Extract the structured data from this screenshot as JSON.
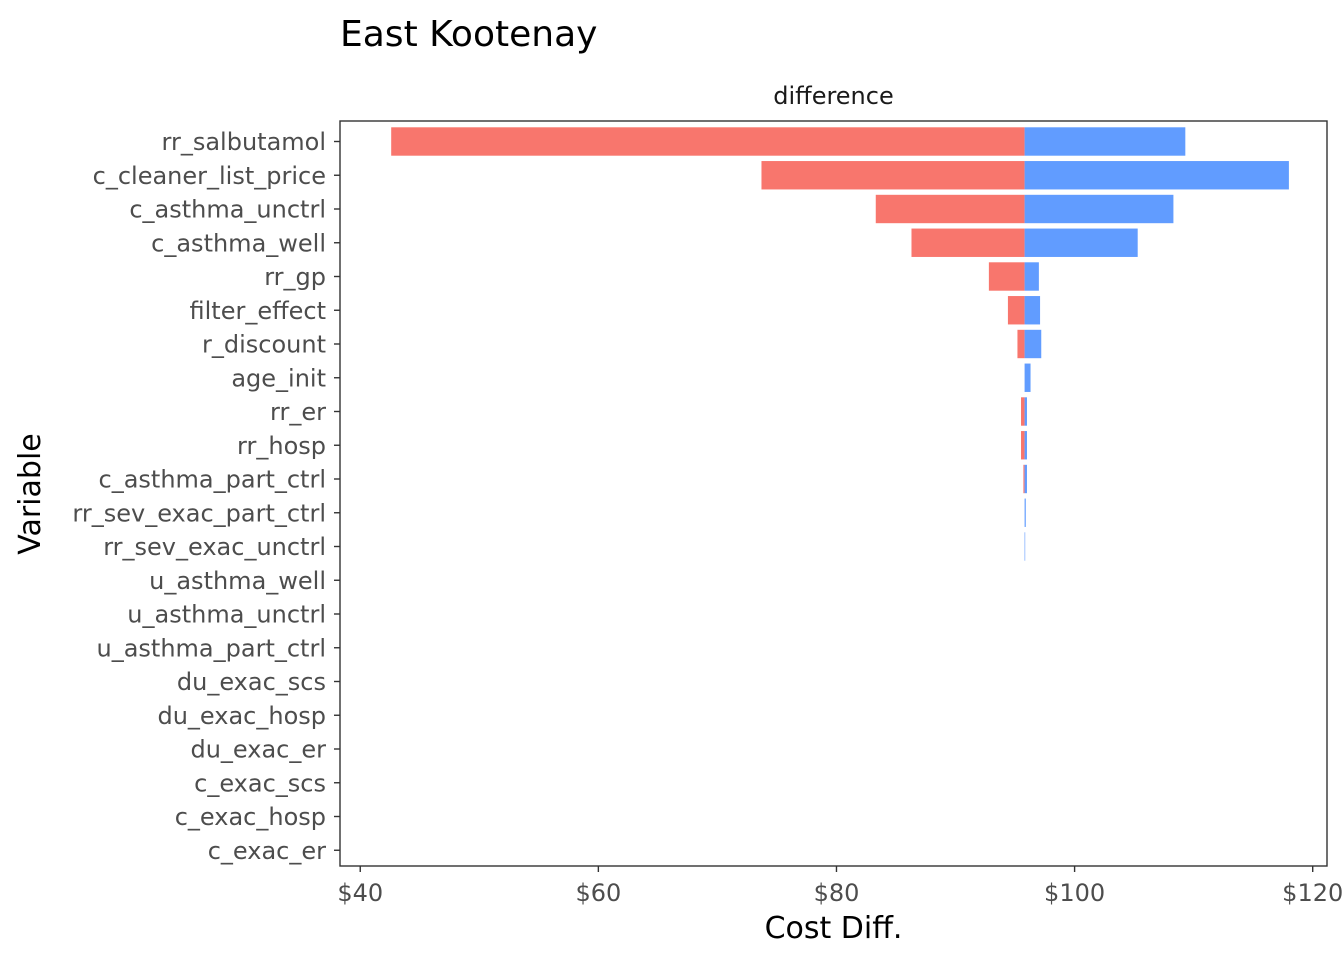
{
  "chart_data": {
    "type": "bar",
    "title": "East Kootenay",
    "facet_label": "difference",
    "xlabel": "Cost Diff.",
    "ylabel": "Variable",
    "base_value": 95.8,
    "xlim": [
      38.3,
      121.2
    ],
    "x_ticks": [
      {
        "value": 40,
        "label": "$40"
      },
      {
        "value": 60,
        "label": "$60"
      },
      {
        "value": 80,
        "label": "$80"
      },
      {
        "value": 100,
        "label": "$100"
      },
      {
        "value": 120,
        "label": "$120"
      }
    ],
    "colors": {
      "low": "#F8766D",
      "high": "#619CFF",
      "panel_border": "#333333",
      "tick": "#333333"
    },
    "categories": [
      "rr_salbutamol",
      "c_cleaner_list_price",
      "c_asthma_unctrl",
      "c_asthma_well",
      "rr_gp",
      "filter_effect",
      "r_discount",
      "age_init",
      "rr_er",
      "rr_hosp",
      "c_asthma_part_ctrl",
      "rr_sev_exac_part_ctrl",
      "rr_sev_exac_unctrl",
      "u_asthma_well",
      "u_asthma_unctrl",
      "u_asthma_part_ctrl",
      "du_exac_scs",
      "du_exac_hosp",
      "du_exac_er",
      "c_exac_scs",
      "c_exac_hosp",
      "c_exac_er"
    ],
    "low_values": [
      42.6,
      73.7,
      83.3,
      86.3,
      92.8,
      94.4,
      95.2,
      95.8,
      95.5,
      95.5,
      95.7,
      95.8,
      95.8,
      95.8,
      95.8,
      95.8,
      95.8,
      95.8,
      95.8,
      95.8,
      95.8,
      95.8
    ],
    "high_values": [
      109.3,
      118.0,
      108.3,
      105.3,
      97.0,
      97.1,
      97.2,
      96.3,
      96.0,
      96.0,
      96.0,
      95.9,
      95.85,
      95.8,
      95.8,
      95.8,
      95.8,
      95.8,
      95.8,
      95.8,
      95.8,
      95.8
    ]
  }
}
